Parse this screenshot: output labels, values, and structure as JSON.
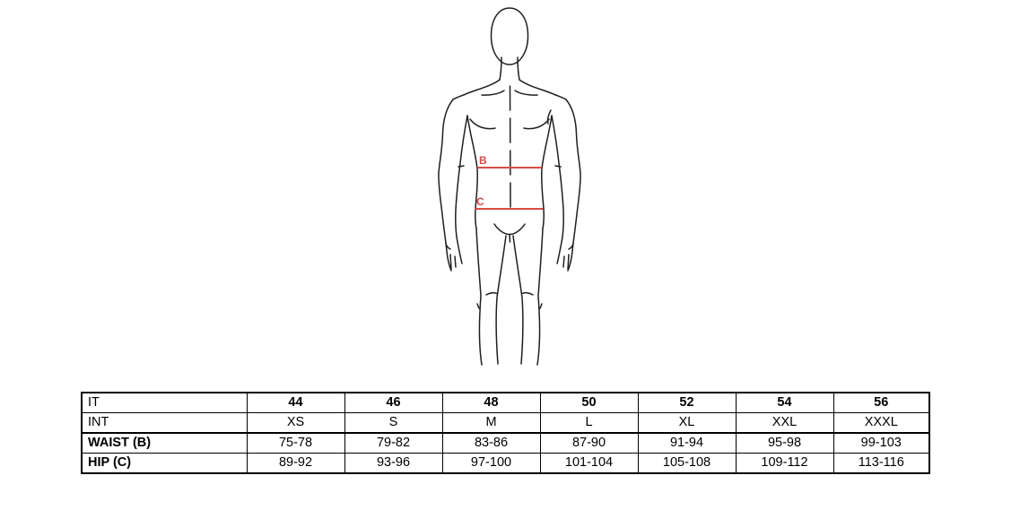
{
  "page": {
    "background": "#ffffff"
  },
  "diagram": {
    "description": "male body outline, front view, cropped at the calves",
    "outline_color": "#1f1f1f",
    "measurement_color": "#d94b45",
    "waist_marker": {
      "label": "B"
    },
    "hip_marker": {
      "label": "C"
    }
  },
  "size_table": {
    "border_color": "#000000",
    "rows": [
      {
        "key": "it",
        "label": "IT",
        "label_bold": false,
        "values_bold": true,
        "values": [
          "44",
          "46",
          "48",
          "50",
          "52",
          "54",
          "56"
        ]
      },
      {
        "key": "int",
        "label": "INT",
        "label_bold": false,
        "values_bold": false,
        "values": [
          "XS",
          "S",
          "M",
          "L",
          "XL",
          "XXL",
          "XXXL"
        ]
      },
      {
        "key": "waist",
        "label": "WAIST (B)",
        "label_bold": true,
        "values_bold": false,
        "values": [
          "75-78",
          "79-82",
          "83-86",
          "87-90",
          "91-94",
          "95-98",
          "99-103"
        ]
      },
      {
        "key": "hip",
        "label": "HIP (C)",
        "label_bold": true,
        "values_bold": false,
        "values": [
          "89-92",
          "93-96",
          "97-100",
          "101-104",
          "105-108",
          "109-112",
          "113-116"
        ]
      }
    ]
  }
}
